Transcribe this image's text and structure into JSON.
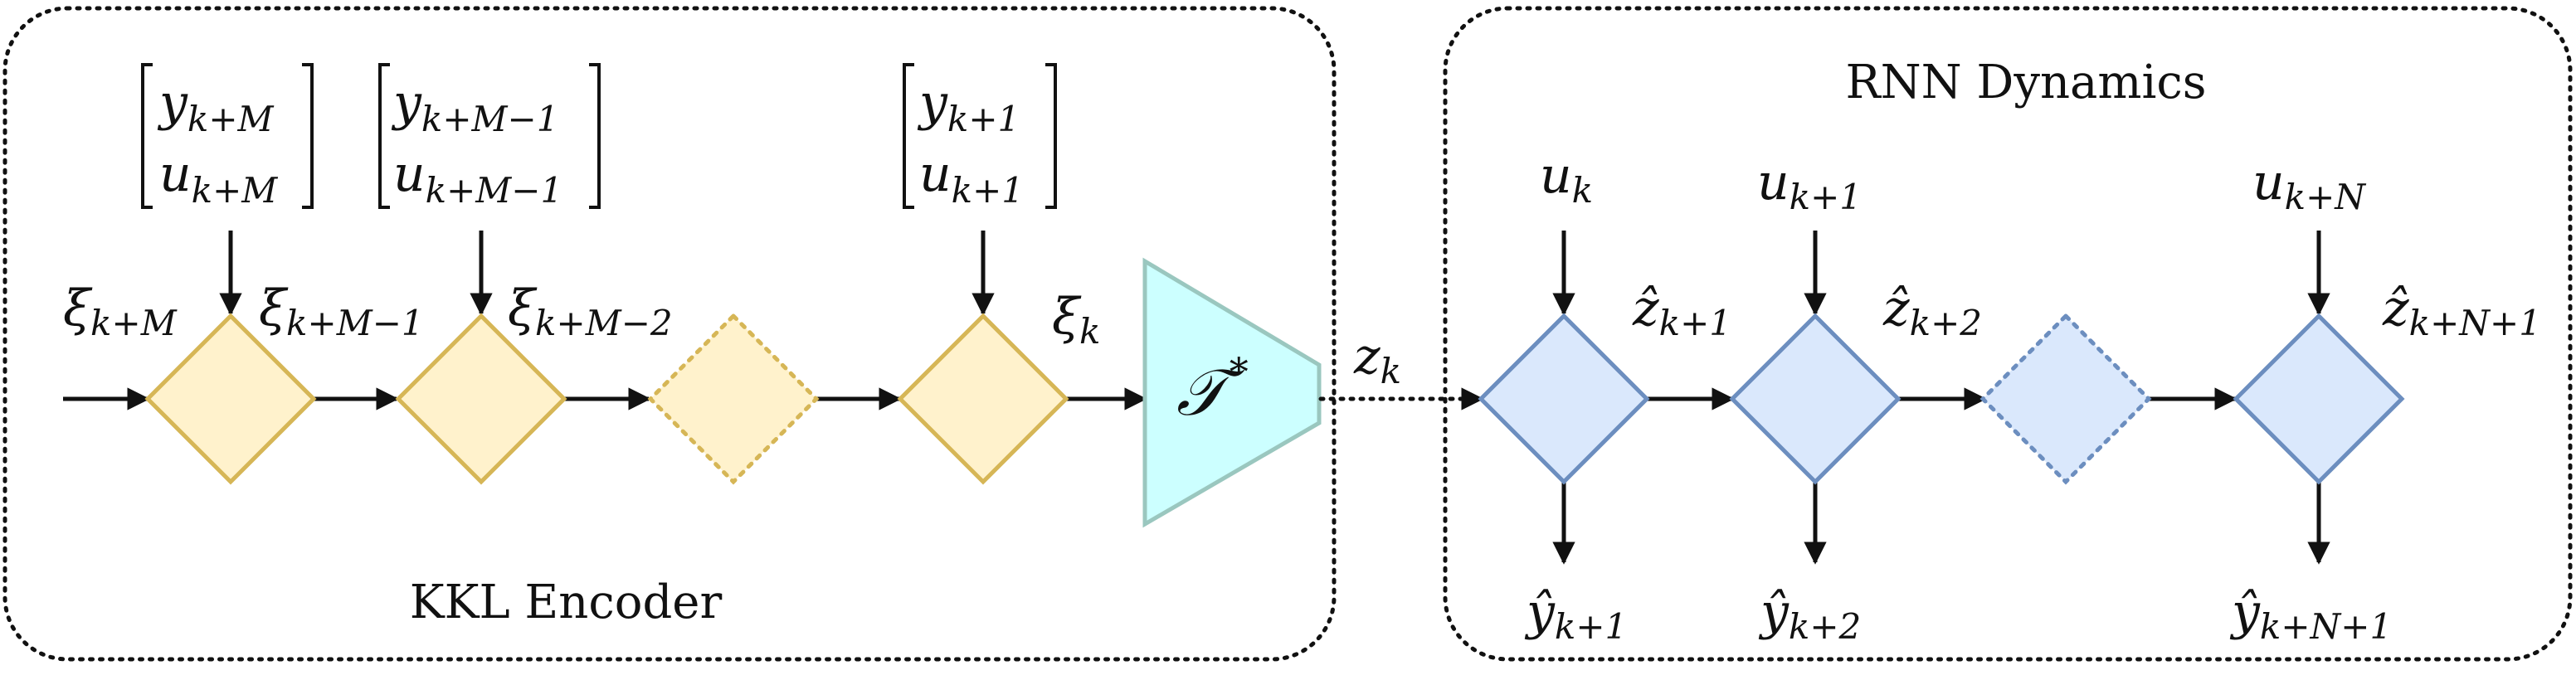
{
  "encoder": {
    "title": "KKL Encoder",
    "inputs": [
      {
        "top": "y",
        "top_sub": "k+M",
        "bottom": "u",
        "bottom_sub": "k+M"
      },
      {
        "top": "y",
        "top_sub": "k+M−1",
        "bottom": "u",
        "bottom_sub": "k+M−1"
      },
      {
        "top": "y",
        "top_sub": "k+1",
        "bottom": "u",
        "bottom_sub": "k+1"
      }
    ],
    "state_labels": [
      {
        "sym": "ξ",
        "sub": "k+M"
      },
      {
        "sym": "ξ",
        "sub": "k+M−1"
      },
      {
        "sym": "ξ",
        "sub": "k+M−2"
      },
      {
        "sym": "ξ",
        "sub": "k"
      }
    ],
    "decoder": {
      "sym": "𝒯",
      "sup": "*"
    },
    "output": {
      "sym": "z",
      "sub": "k"
    }
  },
  "rnn": {
    "title": "RNN Dynamics",
    "inputs": [
      {
        "sym": "u",
        "sub": "k"
      },
      {
        "sym": "u",
        "sub": "k+1"
      },
      {
        "sym": "u",
        "sub": "k+N"
      }
    ],
    "state_labels": [
      {
        "sym": "ẑ",
        "sub": "k+1"
      },
      {
        "sym": "ẑ",
        "sub": "k+2"
      },
      {
        "sym": "ẑ",
        "sub": "k+N+1"
      }
    ],
    "outputs": [
      {
        "sym": "ŷ",
        "sub": "k+1"
      },
      {
        "sym": "ŷ",
        "sub": "k+2"
      },
      {
        "sym": "ŷ",
        "sub": "k+N+1"
      }
    ]
  },
  "colors": {
    "encoder_fill": "#FFF2CC",
    "encoder_stroke": "#D6B656",
    "rnn_fill": "#DAE8FC",
    "rnn_stroke": "#6C8EBF",
    "decoder_fill": "#CCFFFF"
  }
}
